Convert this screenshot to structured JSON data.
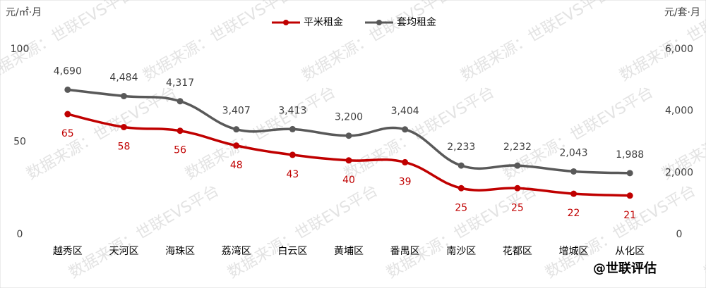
{
  "chart_data": {
    "type": "line",
    "y_axis_label": "元/㎡·月",
    "y2_axis_label": "元/套·月",
    "categories": [
      "越秀区",
      "天河区",
      "海珠区",
      "荔湾区",
      "白云区",
      "黄埔区",
      "番禺区",
      "南沙区",
      "花都区",
      "增城区",
      "从化区"
    ],
    "series": [
      {
        "name": "平米租金",
        "color": "#c00000",
        "axis": "y",
        "values": [
          65,
          58,
          56,
          48,
          43,
          40,
          39,
          25,
          25,
          22,
          21
        ]
      },
      {
        "name": "套均租金",
        "color": "#595959",
        "axis": "y2",
        "values": [
          4690,
          4484,
          4317,
          3407,
          3413,
          3200,
          3404,
          2233,
          2232,
          2043,
          1988
        ],
        "value_labels": [
          "4,690",
          "4,484",
          "4,317",
          "3,407",
          "3,413",
          "3,200",
          "3,404",
          "2,233",
          "2,232",
          "2,043",
          "1,988"
        ]
      }
    ],
    "ylim": [
      0,
      100
    ],
    "yticks": [
      0,
      50,
      100
    ],
    "y2lim": [
      0,
      6000
    ],
    "y2ticks": [
      0,
      {
        "value": 2000,
        "label": "2,000"
      },
      {
        "value": 4000,
        "label": "4,000"
      },
      {
        "value": 6000,
        "label": "6,000"
      }
    ],
    "legend": "top",
    "grid": false
  },
  "watermark": "数据来源：世联EVS平台",
  "footer": "@世联评估"
}
